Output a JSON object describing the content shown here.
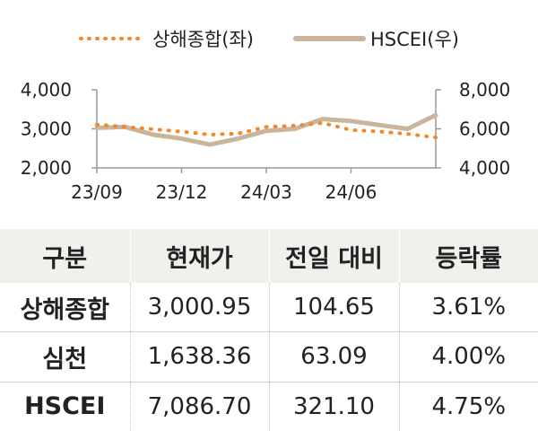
{
  "chart_data": {
    "type": "line",
    "legend": [
      "상해종합(좌)",
      "HSCEI(우)"
    ],
    "legend_position": "top-center",
    "colors": {
      "series1": "#f08a2c",
      "series2": "#c9b59b",
      "axis": "#999999"
    },
    "x_ticks": [
      "23/09",
      "23/12",
      "24/03",
      "24/06"
    ],
    "y_left": {
      "ticks": [
        "2,000",
        "3,000",
        "4,000"
      ],
      "range": [
        2000,
        4000
      ]
    },
    "y_right": {
      "ticks": [
        "4,000",
        "6,000",
        "8,000"
      ],
      "range": [
        4000,
        8000
      ]
    },
    "grid": false,
    "series": [
      {
        "name": "상해종합(좌)",
        "axis": "left",
        "style": "dotted",
        "x": [
          "23/09",
          "23/10",
          "23/11",
          "23/12",
          "24/01",
          "24/02",
          "24/03",
          "24/04",
          "24/05",
          "24/06",
          "24/07",
          "24/08",
          "24/09"
        ],
        "values": [
          3110,
          3050,
          2990,
          2930,
          2850,
          2880,
          3050,
          3080,
          3150,
          2970,
          2930,
          2870,
          2780
        ]
      },
      {
        "name": "HSCEI(우)",
        "axis": "right",
        "style": "solid",
        "x": [
          "23/09",
          "23/10",
          "23/11",
          "23/12",
          "24/01",
          "24/02",
          "24/03",
          "24/04",
          "24/05",
          "24/06",
          "24/07",
          "24/08",
          "24/09"
        ],
        "values": [
          6050,
          6100,
          5700,
          5500,
          5200,
          5500,
          5900,
          6000,
          6500,
          6400,
          6200,
          6000,
          6700
        ]
      }
    ]
  },
  "table": {
    "headers": [
      "구분",
      "현재가",
      "전일 대비",
      "등락률"
    ],
    "rows": [
      [
        "상해종합",
        "3,000.95",
        "104.65",
        "3.61%"
      ],
      [
        "심천",
        "1,638.36",
        "63.09",
        "4.00%"
      ],
      [
        "HSCEI",
        "7,086.70",
        "321.10",
        "4.75%"
      ]
    ]
  }
}
